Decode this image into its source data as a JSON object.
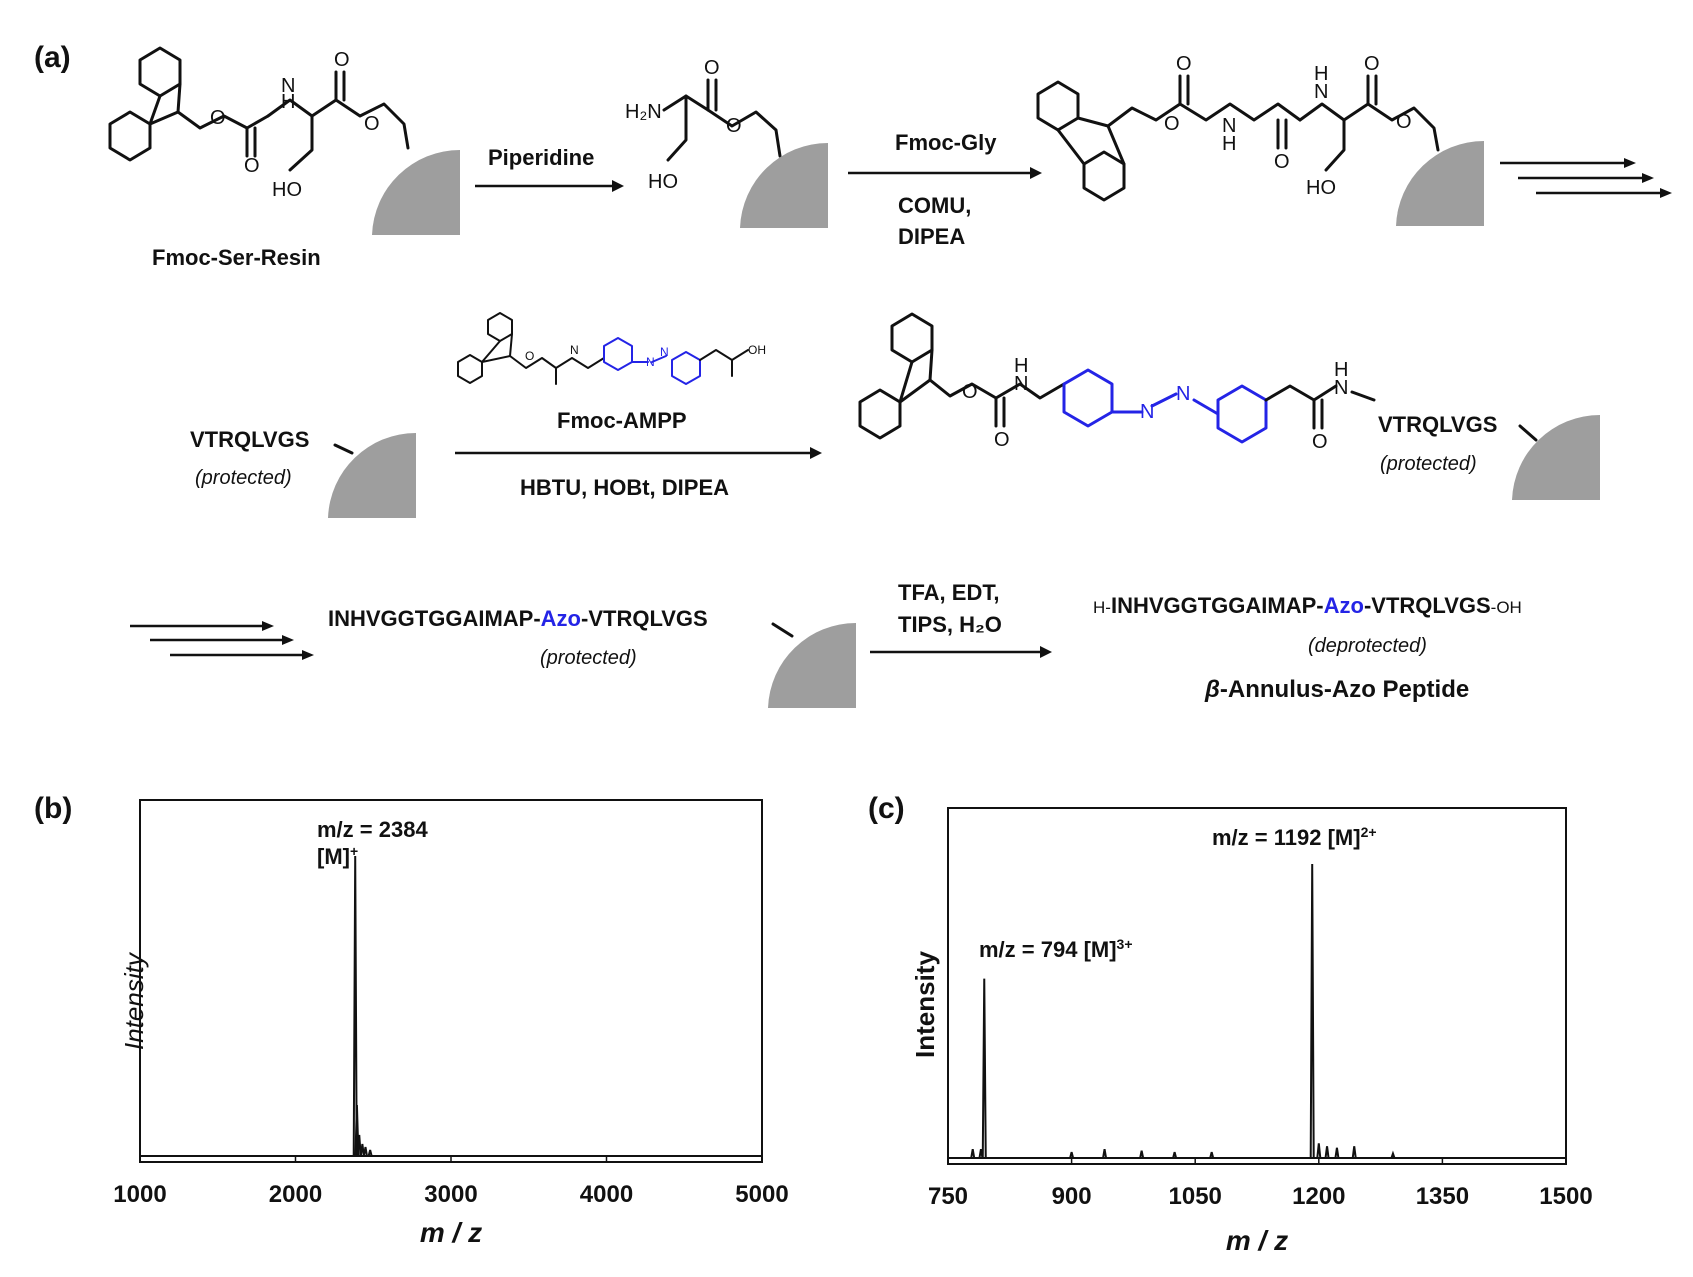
{
  "panels": {
    "a": "(a)",
    "b": "(b)",
    "c": "(c)"
  },
  "scheme": {
    "fmoc_ser_resin_label": "Fmoc-Ser-Resin",
    "step1_reagent": "Piperidine",
    "step2_reagent": "Fmoc-Gly",
    "step2_conditions": [
      "COMU,",
      "DIPEA"
    ],
    "peptide_short": "VTRQLVGS",
    "protected_note": "(protected)",
    "step3_reagent": "Fmoc-AMPP",
    "step3_conditions": "HBTU, HOBt, DIPEA",
    "long_peptide_pre": "INHVGGTGGAIMAP-",
    "azo": "Azo",
    "long_peptide_post": "-VTRQLVGS",
    "cleavage_conditions": [
      "TFA, EDT,",
      "TIPS, H₂O"
    ],
    "final_prefix": "H-",
    "final_suffix": "-OH",
    "deprotected_note": "(deprotected)",
    "product_label_beta": "β",
    "product_label_rest": "-Annulus-Azo Peptide",
    "atoms": {
      "N": "N",
      "H": "H",
      "O": "O",
      "HO": "HO",
      "H2N": "H₂N",
      "OH": "OH"
    }
  },
  "chart_data": [
    {
      "type": "line",
      "panel": "(b)",
      "xlabel": "m / z",
      "ylabel": "Intensity",
      "xlim": [
        1000,
        5000
      ],
      "xticks": [
        1000,
        2000,
        3000,
        4000,
        5000
      ],
      "peaks": [
        {
          "x": 2384,
          "y": 1.0
        },
        {
          "x": 2395,
          "y": 0.17
        },
        {
          "x": 2410,
          "y": 0.07
        },
        {
          "x": 2430,
          "y": 0.04
        },
        {
          "x": 2450,
          "y": 0.03
        },
        {
          "x": 2480,
          "y": 0.02
        }
      ],
      "annotations": [
        {
          "x": 2384,
          "text": "m/z = 2384",
          "ion": "[M]",
          "charge": "+"
        }
      ]
    },
    {
      "type": "line",
      "panel": "(c)",
      "xlabel": "m / z",
      "ylabel": "Intensity",
      "xlim": [
        750,
        1500
      ],
      "xticks": [
        750,
        900,
        1050,
        1200,
        1350,
        1500
      ],
      "peaks": [
        {
          "x": 794,
          "y": 0.61
        },
        {
          "x": 780,
          "y": 0.03
        },
        {
          "x": 790,
          "y": 0.03
        },
        {
          "x": 900,
          "y": 0.02
        },
        {
          "x": 940,
          "y": 0.03
        },
        {
          "x": 985,
          "y": 0.025
        },
        {
          "x": 1025,
          "y": 0.02
        },
        {
          "x": 1070,
          "y": 0.02
        },
        {
          "x": 1192,
          "y": 1.0
        },
        {
          "x": 1200,
          "y": 0.05
        },
        {
          "x": 1210,
          "y": 0.04
        },
        {
          "x": 1222,
          "y": 0.035
        },
        {
          "x": 1243,
          "y": 0.04
        },
        {
          "x": 1290,
          "y": 0.015
        }
      ],
      "annotations": [
        {
          "x": 794,
          "text": "m/z = 794 [M]",
          "charge": "3+"
        },
        {
          "x": 1192,
          "text": "m/z = 1192 [M]",
          "charge": "2+"
        }
      ]
    }
  ]
}
